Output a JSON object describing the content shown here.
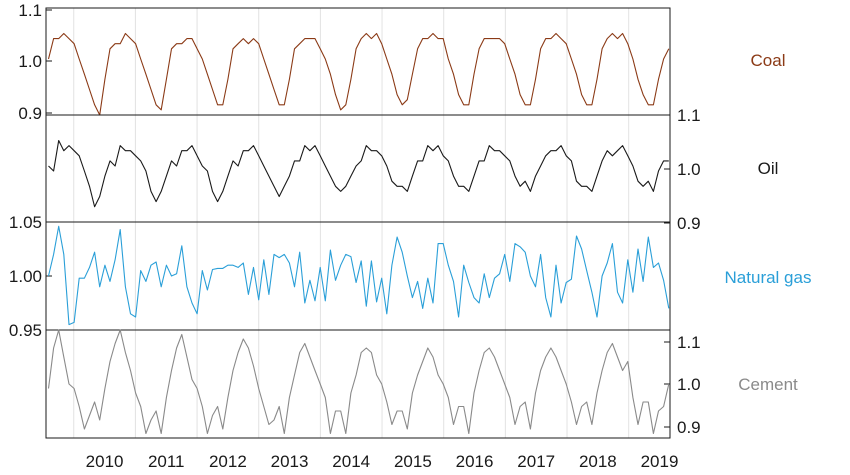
{
  "chart_data": {
    "type": "line",
    "layout": "stacked panels sharing one x axis, y axes alternating left and right",
    "grid": "vertical lines at year boundaries",
    "x_ticks": [
      "2010",
      "2011",
      "2012",
      "2013",
      "2014",
      "2015",
      "2016",
      "2017",
      "2018",
      "2019"
    ],
    "x_range": [
      2009.55,
      2019.67
    ],
    "panels": [
      {
        "name": "Coal",
        "color": "#8B3A16",
        "ylim": [
          0.89,
          1.1
        ],
        "axis_side": "left",
        "ticks": [
          {
            "value": 1.1,
            "label": "1.1"
          },
          {
            "value": 1.0,
            "label": "1.0"
          },
          {
            "value": 0.9,
            "label": "0.9"
          }
        ],
        "values": [
          1.0,
          1.04,
          1.04,
          1.05,
          1.04,
          1.03,
          1.0,
          0.97,
          0.94,
          0.91,
          0.89,
          0.96,
          1.02,
          1.03,
          1.03,
          1.05,
          1.04,
          1.03,
          1.0,
          0.97,
          0.94,
          0.91,
          0.9,
          0.96,
          1.02,
          1.03,
          1.03,
          1.04,
          1.04,
          1.02,
          1.0,
          0.97,
          0.94,
          0.91,
          0.91,
          0.96,
          1.02,
          1.03,
          1.04,
          1.03,
          1.04,
          1.03,
          1.0,
          0.97,
          0.94,
          0.91,
          0.91,
          0.96,
          1.02,
          1.03,
          1.04,
          1.04,
          1.04,
          1.02,
          1.0,
          0.97,
          0.93,
          0.9,
          0.91,
          0.96,
          1.02,
          1.04,
          1.05,
          1.04,
          1.05,
          1.03,
          1.0,
          0.97,
          0.93,
          0.91,
          0.92,
          0.97,
          1.02,
          1.04,
          1.04,
          1.05,
          1.04,
          1.04,
          1.0,
          0.97,
          0.93,
          0.91,
          0.91,
          0.97,
          1.02,
          1.04,
          1.04,
          1.04,
          1.04,
          1.03,
          1.0,
          0.97,
          0.93,
          0.91,
          0.91,
          0.96,
          1.02,
          1.04,
          1.04,
          1.05,
          1.04,
          1.03,
          1.0,
          0.97,
          0.93,
          0.91,
          0.91,
          0.96,
          1.02,
          1.04,
          1.05,
          1.04,
          1.05,
          1.03,
          1.0,
          0.96,
          0.93,
          0.91,
          0.91,
          0.96,
          1.0,
          1.02
        ]
      },
      {
        "name": "Oil",
        "color": "#1a1a1a",
        "ylim": [
          0.89,
          1.1
        ],
        "axis_side": "right",
        "ticks": [
          {
            "value": 1.1,
            "label": "1.1"
          },
          {
            "value": 1.0,
            "label": "1.0"
          },
          {
            "value": 0.9,
            "label": "0.9"
          }
        ],
        "values": [
          1.0,
          0.99,
          1.05,
          1.03,
          1.04,
          1.03,
          1.02,
          0.99,
          0.96,
          0.92,
          0.94,
          0.98,
          1.01,
          1.0,
          1.04,
          1.03,
          1.03,
          1.02,
          1.01,
          0.99,
          0.95,
          0.93,
          0.95,
          0.98,
          1.01,
          1.0,
          1.03,
          1.03,
          1.04,
          1.02,
          1.0,
          0.99,
          0.95,
          0.93,
          0.95,
          0.98,
          1.01,
          1.0,
          1.03,
          1.03,
          1.04,
          1.02,
          1.0,
          0.98,
          0.96,
          0.94,
          0.96,
          0.98,
          1.01,
          1.01,
          1.04,
          1.03,
          1.04,
          1.02,
          1.0,
          0.98,
          0.96,
          0.95,
          0.96,
          0.98,
          1.0,
          1.01,
          1.04,
          1.03,
          1.03,
          1.02,
          1.0,
          0.97,
          0.96,
          0.96,
          0.95,
          0.98,
          1.01,
          1.01,
          1.04,
          1.03,
          1.04,
          1.02,
          1.01,
          0.98,
          0.96,
          0.96,
          0.95,
          0.98,
          1.01,
          1.01,
          1.04,
          1.03,
          1.03,
          1.02,
          1.01,
          0.98,
          0.96,
          0.97,
          0.95,
          0.98,
          1.0,
          1.02,
          1.03,
          1.03,
          1.04,
          1.02,
          1.01,
          0.97,
          0.96,
          0.96,
          0.95,
          0.98,
          1.01,
          1.03,
          1.02,
          1.03,
          1.04,
          1.02,
          1.0,
          0.97,
          0.96,
          0.97,
          0.95,
          0.99,
          1.01,
          1.01
        ]
      },
      {
        "name": "Natural gas",
        "color": "#2a9fd8",
        "ylim": [
          0.95,
          1.05
        ],
        "axis_side": "left",
        "ticks": [
          {
            "value": 1.05,
            "label": "1.05"
          },
          {
            "value": 1.0,
            "label": "1.00"
          },
          {
            "value": 0.95,
            "label": "0.95"
          }
        ],
        "values": [
          1.0,
          1.02,
          1.046,
          1.02,
          0.955,
          0.957,
          0.998,
          0.998,
          1.008,
          1.022,
          0.99,
          1.01,
          0.995,
          1.015,
          1.043,
          0.99,
          0.965,
          0.962,
          1.005,
          0.995,
          1.01,
          1.013,
          0.99,
          1.01,
          1.0,
          1.002,
          1.028,
          0.99,
          0.975,
          0.965,
          1.005,
          0.987,
          1.006,
          1.007,
          1.007,
          1.01,
          1.01,
          1.008,
          1.012,
          0.983,
          1.008,
          0.978,
          1.015,
          0.983,
          1.02,
          1.017,
          1.02,
          1.012,
          0.99,
          1.022,
          0.975,
          0.996,
          0.977,
          1.008,
          0.977,
          1.024,
          0.996,
          1.01,
          1.02,
          1.018,
          0.994,
          1.014,
          0.972,
          1.014,
          0.976,
          0.998,
          0.965,
          1.01,
          1.036,
          1.022,
          1.0,
          0.98,
          0.995,
          0.97,
          0.998,
          0.975,
          1.03,
          1.03,
          1.01,
          0.995,
          0.962,
          1.01,
          0.994,
          0.98,
          0.975,
          1.002,
          0.98,
          0.998,
          1.002,
          1.02,
          0.995,
          1.03,
          1.027,
          1.022,
          1.0,
          0.99,
          1.02,
          0.98,
          0.962,
          1.01,
          0.975,
          0.994,
          0.997,
          1.037,
          1.025,
          1.005,
          0.985,
          0.962,
          1.0,
          1.012,
          1.03,
          0.985,
          0.975,
          1.015,
          0.985,
          1.025,
          0.995,
          1.036,
          1.008,
          1.012,
          0.996,
          0.97
        ]
      },
      {
        "name": "Cement",
        "color": "#8a8a8a",
        "ylim": [
          0.88,
          1.12
        ],
        "axis_side": "right",
        "ticks": [
          {
            "value": 1.1,
            "label": "1.1"
          },
          {
            "value": 1.0,
            "label": "1.0"
          },
          {
            "value": 0.9,
            "label": "0.9"
          }
        ],
        "values": [
          0.99,
          1.08,
          1.12,
          1.06,
          1.0,
          0.99,
          0.95,
          0.9,
          0.93,
          0.96,
          0.92,
          0.99,
          1.05,
          1.09,
          1.12,
          1.07,
          1.03,
          0.98,
          0.95,
          0.89,
          0.92,
          0.94,
          0.89,
          0.97,
          1.03,
          1.08,
          1.11,
          1.06,
          1.01,
          0.99,
          0.95,
          0.89,
          0.93,
          0.95,
          0.9,
          0.97,
          1.03,
          1.07,
          1.1,
          1.08,
          1.04,
          0.99,
          0.95,
          0.91,
          0.92,
          0.95,
          0.89,
          0.97,
          1.02,
          1.07,
          1.09,
          1.06,
          1.03,
          1.0,
          0.97,
          0.89,
          0.94,
          0.94,
          0.89,
          0.98,
          1.02,
          1.07,
          1.08,
          1.07,
          1.02,
          1.0,
          0.96,
          0.91,
          0.94,
          0.94,
          0.9,
          0.98,
          1.02,
          1.05,
          1.08,
          1.06,
          1.02,
          1.0,
          0.97,
          0.91,
          0.95,
          0.95,
          0.89,
          0.98,
          1.03,
          1.07,
          1.08,
          1.06,
          1.03,
          1.0,
          0.97,
          0.91,
          0.95,
          0.96,
          0.9,
          0.98,
          1.03,
          1.06,
          1.08,
          1.06,
          1.03,
          1.0,
          0.96,
          0.91,
          0.95,
          0.96,
          0.91,
          0.98,
          1.03,
          1.07,
          1.09,
          1.06,
          1.03,
          1.05,
          0.97,
          0.91,
          0.96,
          0.96,
          0.89,
          0.94,
          0.95,
          1.0
        ]
      }
    ]
  }
}
